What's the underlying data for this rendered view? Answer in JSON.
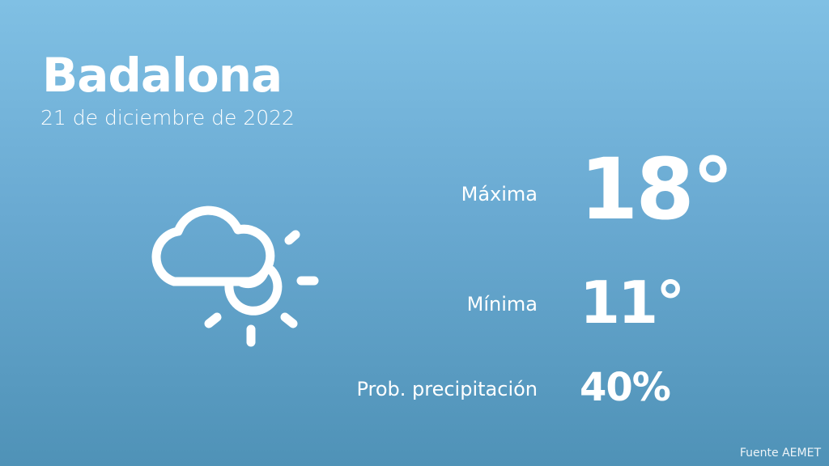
{
  "city": "Badalona",
  "date": "21 de diciembre de 2022",
  "weather_icon": "cloud-sun-icon",
  "stats": {
    "max_label": "Máxima",
    "max_value": "18°",
    "min_label": "Mínima",
    "min_value": "11°",
    "precip_label": "Prob. precipitación",
    "precip_value": "40%"
  },
  "source": "Fuente AEMET",
  "colors": {
    "bg_top": "#80c0e4",
    "bg_bottom": "#4f92b7",
    "text": "#ffffff"
  }
}
